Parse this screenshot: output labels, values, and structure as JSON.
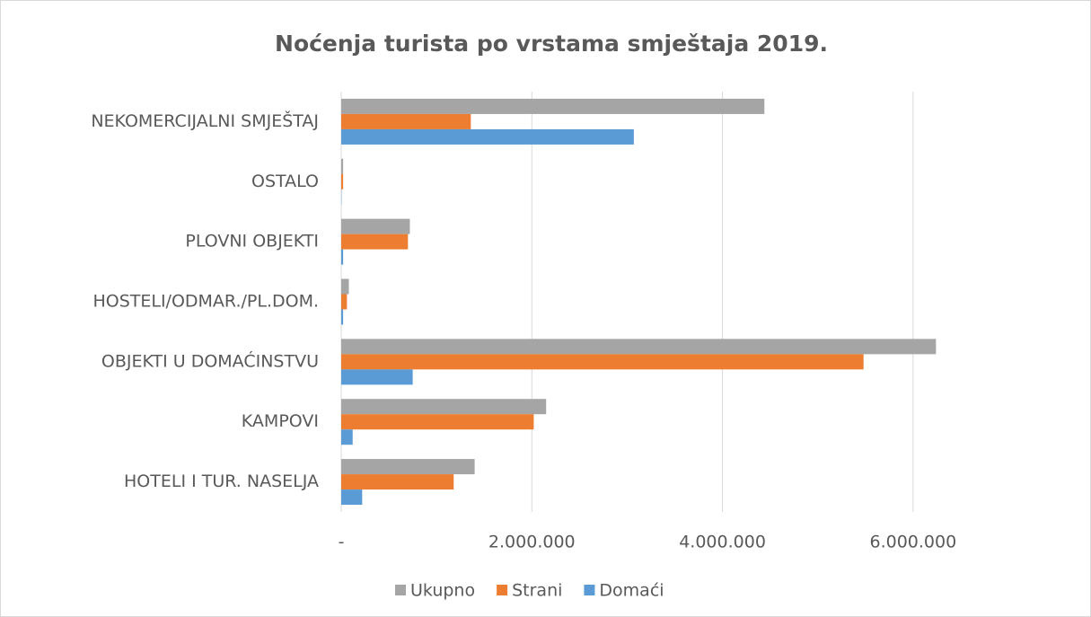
{
  "chart_data": {
    "type": "hbar",
    "title": "Noćenja turista po vrstama smještaja 2019.",
    "categories": [
      "NEKOMERCIJALNI SMJEŠTAJ",
      "OSTALO",
      "PLOVNI OBJEKTI",
      "HOSTELI/ODMAR./PL.DOM.",
      "OBJEKTI U DOMAĆINSTVU",
      "KAMPOVI",
      "HOTELI I TUR. NASELJA"
    ],
    "series": [
      {
        "name": "Ukupno",
        "color": "#a5a5a5",
        "values": [
          4440000,
          20000,
          720000,
          80000,
          6240000,
          2150000,
          1400000
        ]
      },
      {
        "name": "Strani",
        "color": "#ed7d31",
        "values": [
          1360000,
          20000,
          700000,
          60000,
          5480000,
          2020000,
          1180000
        ]
      },
      {
        "name": "Domaći",
        "color": "#5b9bd5",
        "values": [
          3070000,
          3000,
          20000,
          20000,
          750000,
          120000,
          220000
        ]
      }
    ],
    "xlim": [
      0,
      7000000
    ],
    "xticks": [
      {
        "value": 0,
        "label": "-"
      },
      {
        "value": 2000000,
        "label": "2.000.000"
      },
      {
        "value": 4000000,
        "label": "4.000.000"
      },
      {
        "value": 6000000,
        "label": "6.000.000"
      }
    ],
    "grid": true,
    "legend": "bottom"
  }
}
